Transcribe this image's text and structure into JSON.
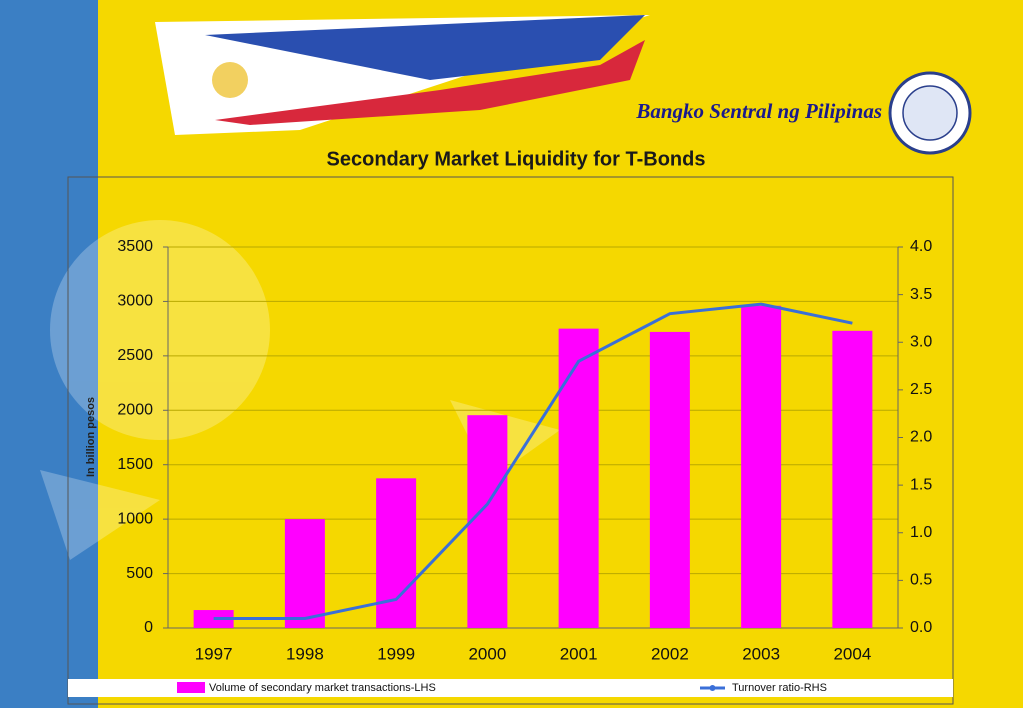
{
  "header": {
    "title": "Bangko Sentral ng Pilipinas"
  },
  "chart_data": {
    "type": "bar",
    "title": "Secondary Market Liquidity for T-Bonds",
    "y_label": "In billion pesos",
    "categories": [
      "1997",
      "1998",
      "1999",
      "2000",
      "2001",
      "2002",
      "2003",
      "2004"
    ],
    "series": [
      {
        "name": "Volume of secondary market transactions-LHS",
        "type": "bar",
        "color": "#ff00ff",
        "values": [
          165,
          1000,
          1375,
          1955,
          2750,
          2720,
          2960,
          2730
        ]
      },
      {
        "name": "Turnover ratio-RHS",
        "type": "line",
        "axis": "y2",
        "color": "#3a6fd8",
        "values": [
          0.1,
          0.1,
          0.3,
          1.3,
          2.8,
          3.3,
          3.4,
          3.2
        ]
      }
    ],
    "ylim": [
      0,
      3500
    ],
    "yticks": [
      0,
      500,
      1000,
      1500,
      2000,
      2500,
      3000,
      3500
    ],
    "y2lim": [
      0,
      4
    ],
    "y2ticks": [
      {
        "value": 0,
        "label": "0.0"
      },
      0.5,
      {
        "value": 1,
        "label": "1.0"
      },
      1.5,
      {
        "value": 2,
        "label": "2.0"
      },
      2.5,
      {
        "value": 3,
        "label": "3.0"
      },
      3.5,
      {
        "value": 4,
        "label": "4.0"
      }
    ],
    "grid": true
  }
}
